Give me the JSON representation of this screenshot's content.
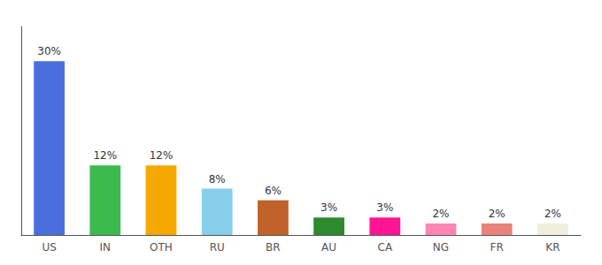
{
  "chart_data": {
    "type": "bar",
    "categories": [
      "US",
      "IN",
      "OTH",
      "RU",
      "BR",
      "AU",
      "CA",
      "NG",
      "FR",
      "KR"
    ],
    "values": [
      30,
      12,
      12,
      8,
      6,
      3,
      3,
      2,
      2,
      2
    ],
    "value_labels": [
      "30%",
      "12%",
      "12%",
      "8%",
      "6%",
      "3%",
      "3%",
      "2%",
      "2%",
      "2%"
    ],
    "colors": [
      "#4a6fdc",
      "#3dba4e",
      "#f5a800",
      "#87ceeb",
      "#c0622a",
      "#2d8a2d",
      "#ff1493",
      "#ff85b3",
      "#e8837a",
      "#f0eedd"
    ],
    "ylim": [
      0,
      36
    ],
    "grid": false,
    "data_labels": true,
    "tick_labels": "x"
  }
}
